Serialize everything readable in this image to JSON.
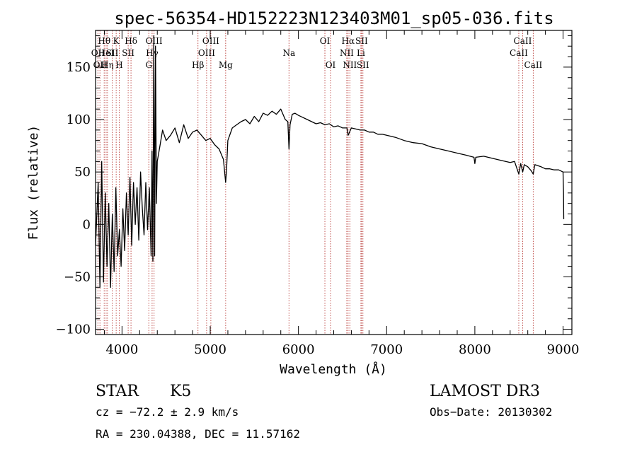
{
  "chart_data": {
    "type": "line",
    "title": "spec-56354-HD152223N123403M01_sp05-036.fits",
    "xlabel": "Wavelength (Å)",
    "ylabel": "Flux (relative)",
    "xlim": [
      3700,
      9100
    ],
    "ylim": [
      -105,
      185
    ],
    "x_ticks": [
      {
        "value": 4000,
        "label": "4000"
      },
      {
        "value": 5000,
        "label": "5000"
      },
      {
        "value": 6000,
        "label": "6000"
      },
      {
        "value": 7000,
        "label": "7000"
      },
      {
        "value": 8000,
        "label": "8000"
      },
      {
        "value": 9000,
        "label": "9000"
      }
    ],
    "y_ticks": [
      {
        "value": -100,
        "label": "−100"
      },
      {
        "value": -50,
        "label": "−50"
      },
      {
        "value": 0,
        "label": "0"
      },
      {
        "value": 50,
        "label": "50"
      },
      {
        "value": 100,
        "label": "100"
      },
      {
        "value": 150,
        "label": "150"
      }
    ],
    "spectrum": {
      "name": "flux",
      "x": [
        3700,
        3730,
        3750,
        3770,
        3790,
        3810,
        3830,
        3850,
        3870,
        3890,
        3910,
        3930,
        3950,
        3970,
        3990,
        4010,
        4030,
        4050,
        4070,
        4090,
        4110,
        4130,
        4150,
        4170,
        4190,
        4210,
        4230,
        4250,
        4270,
        4290,
        4310,
        4330,
        4340,
        4350,
        4360,
        4370,
        4380,
        4390,
        4400,
        4430,
        4460,
        4500,
        4550,
        4600,
        4650,
        4700,
        4750,
        4800,
        4850,
        4900,
        4950,
        5000,
        5050,
        5100,
        5150,
        5175,
        5185,
        5200,
        5250,
        5300,
        5350,
        5400,
        5450,
        5500,
        5550,
        5600,
        5650,
        5700,
        5750,
        5800,
        5850,
        5880,
        5893,
        5905,
        5930,
        5960,
        6000,
        6050,
        6100,
        6150,
        6200,
        6250,
        6300,
        6350,
        6400,
        6450,
        6500,
        6550,
        6563,
        6580,
        6600,
        6650,
        6700,
        6750,
        6800,
        6850,
        6900,
        6950,
        7000,
        7100,
        7200,
        7300,
        7400,
        7500,
        7600,
        7700,
        7800,
        7900,
        7990,
        8000,
        8010,
        8100,
        8200,
        8300,
        8400,
        8450,
        8498,
        8520,
        8542,
        8560,
        8600,
        8640,
        8662,
        8680,
        8750,
        8800,
        8850,
        8900,
        8950,
        9000,
        9005,
        9008
      ],
      "values": [
        -20,
        40,
        -60,
        60,
        -55,
        30,
        -40,
        20,
        -60,
        10,
        -45,
        35,
        -30,
        -5,
        -40,
        15,
        -25,
        30,
        -10,
        45,
        -20,
        40,
        0,
        35,
        -15,
        50,
        15,
        -10,
        40,
        -5,
        35,
        -30,
        70,
        -35,
        180,
        -30,
        170,
        20,
        60,
        75,
        90,
        80,
        85,
        92,
        78,
        95,
        82,
        88,
        90,
        85,
        80,
        82,
        76,
        72,
        62,
        40,
        52,
        80,
        92,
        95,
        98,
        100,
        96,
        103,
        98,
        106,
        104,
        108,
        105,
        110,
        100,
        98,
        72,
        95,
        105,
        106,
        104,
        102,
        100,
        98,
        96,
        97,
        95,
        96,
        93,
        94,
        92,
        92,
        85,
        88,
        92,
        91,
        90,
        90,
        88,
        88,
        86,
        86,
        85,
        83,
        80,
        78,
        77,
        74,
        72,
        70,
        68,
        66,
        64,
        58,
        64,
        65,
        63,
        61,
        59,
        60,
        48,
        58,
        50,
        57,
        55,
        51,
        48,
        57,
        55,
        53,
        53,
        52,
        52,
        50,
        30,
        5
      ]
    },
    "line_markers": {
      "style": "dotted",
      "color": "#c0504d",
      "lines": [
        {
          "wavelength": 3727,
          "label": "OII",
          "row": 2
        },
        {
          "wavelength": 3750,
          "label": "OII",
          "row": 3
        },
        {
          "wavelength": 3798,
          "label": "Hθ",
          "row": 1
        },
        {
          "wavelength": 3820,
          "label": "HeI",
          "row": 2
        },
        {
          "wavelength": 3835,
          "label": "Hη",
          "row": 3
        },
        {
          "wavelength": 3889,
          "label": "SII",
          "row": 2
        },
        {
          "wavelength": 3934,
          "label": "K",
          "row": 1
        },
        {
          "wavelength": 3969,
          "label": "H",
          "row": 3
        },
        {
          "wavelength": 4070,
          "label": "SII",
          "row": 2
        },
        {
          "wavelength": 4102,
          "label": "Hδ",
          "row": 1
        },
        {
          "wavelength": 4304,
          "label": "G",
          "row": 3
        },
        {
          "wavelength": 4341,
          "label": "Hγ",
          "row": 2
        },
        {
          "wavelength": 4363,
          "label": "OIII",
          "row": 1
        },
        {
          "wavelength": 4861,
          "label": "Hβ",
          "row": 3
        },
        {
          "wavelength": 4959,
          "label": "OIII",
          "row": 2
        },
        {
          "wavelength": 5007,
          "label": "OIII",
          "row": 1
        },
        {
          "wavelength": 5175,
          "label": "Mg",
          "row": 3
        },
        {
          "wavelength": 5893,
          "label": "Na",
          "row": 2
        },
        {
          "wavelength": 6300,
          "label": "OI",
          "row": 1
        },
        {
          "wavelength": 6364,
          "label": "OI",
          "row": 3
        },
        {
          "wavelength": 6548,
          "label": "NII",
          "row": 2
        },
        {
          "wavelength": 6563,
          "label": "Hα",
          "row": 1
        },
        {
          "wavelength": 6583,
          "label": "NII",
          "row": 3
        },
        {
          "wavelength": 6708,
          "label": "Li",
          "row": 2
        },
        {
          "wavelength": 6716,
          "label": "SII",
          "row": 1
        },
        {
          "wavelength": 6731,
          "label": "SII",
          "row": 3
        },
        {
          "wavelength": 8498,
          "label": "CaII",
          "row": 2
        },
        {
          "wavelength": 8542,
          "label": "CaII",
          "row": 1
        },
        {
          "wavelength": 8662,
          "label": "CaII",
          "row": 3
        }
      ]
    }
  },
  "info": {
    "object_class": "STAR",
    "subclass": "K5",
    "survey": "LAMOST DR3",
    "redshift": "cz = −72.2 ± 2.9 km/s",
    "obs_date": "Obs−Date: 20130302",
    "coords": "RA = 230.04388, DEC =  11.57162"
  }
}
